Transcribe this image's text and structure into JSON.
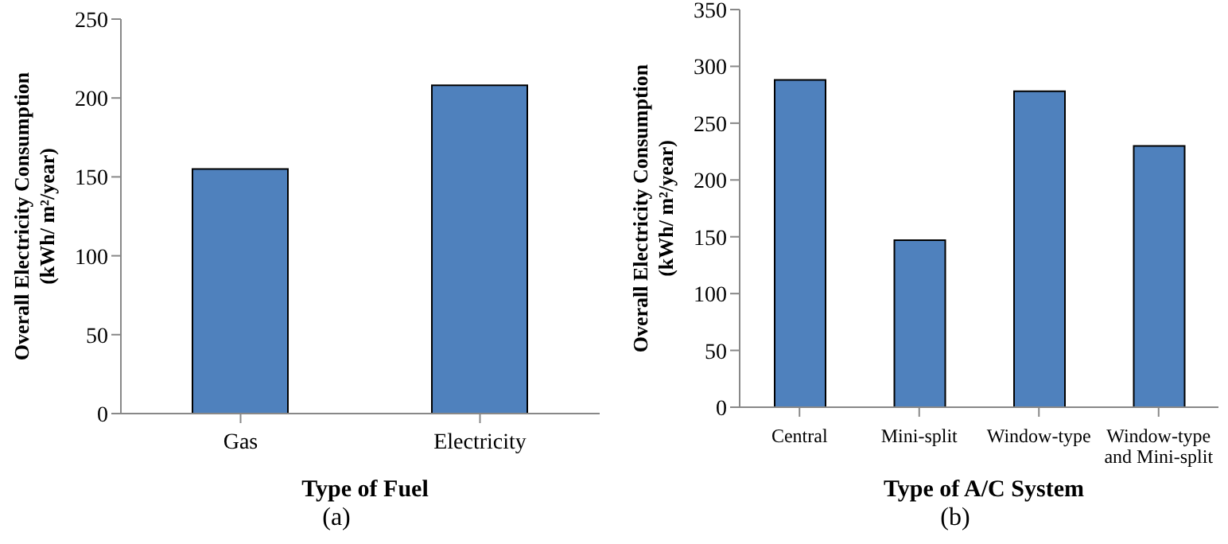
{
  "chart_data": [
    {
      "type": "bar",
      "categories": [
        "Gas",
        "Electricity"
      ],
      "values": [
        155,
        208
      ],
      "color": "#4f81bd",
      "ylim": [
        0,
        250
      ],
      "yticks": [
        0,
        50,
        100,
        150,
        200,
        250
      ],
      "xlabel": "Type of Fuel",
      "ylabel": "Overall Electricity Consumption\n(kWh/ m²/year)",
      "grid": false,
      "legend": false,
      "annotations": [
        "(a)"
      ]
    },
    {
      "type": "bar",
      "categories": [
        "Central",
        "Mini-split",
        "Window-type",
        "Window-type and Mini-split"
      ],
      "values": [
        288,
        147,
        278,
        230
      ],
      "color": "#4f81bd",
      "ylim": [
        0,
        350
      ],
      "yticks": [
        0,
        50,
        100,
        150,
        200,
        250,
        300,
        350
      ],
      "xlabel": "Type of A/C System",
      "ylabel": "Overall Electricity Consumption\n(kWh/ m²/year)",
      "grid": false,
      "legend": false,
      "annotations": [
        "(b)"
      ]
    }
  ]
}
